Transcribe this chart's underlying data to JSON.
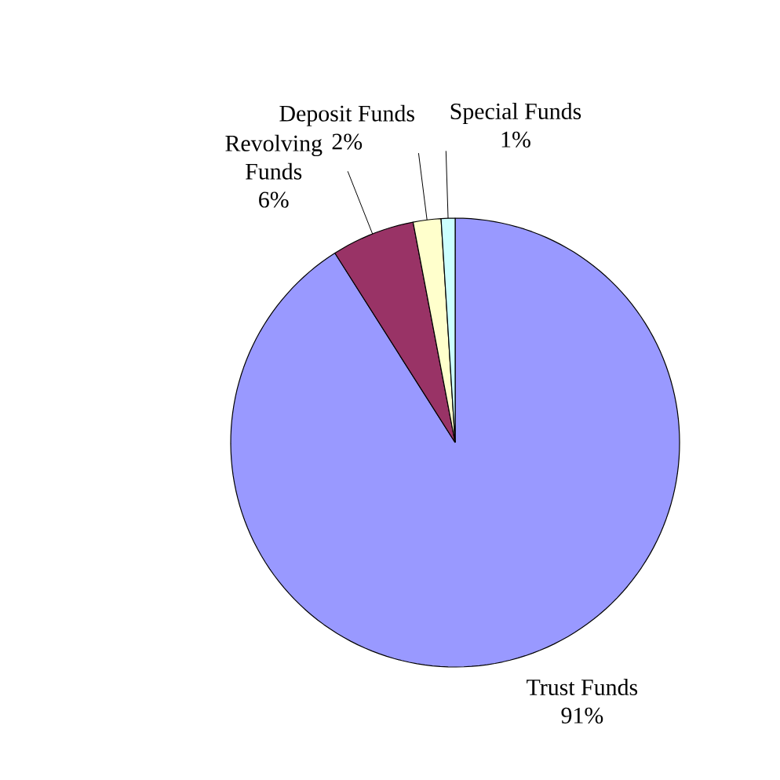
{
  "chart_data": {
    "type": "pie",
    "categories": [
      "Trust Funds",
      "Revolving Funds",
      "Deposit Funds",
      "Special Funds"
    ],
    "values": [
      91,
      6,
      2,
      1
    ],
    "colors": [
      "#9999ff",
      "#993366",
      "#ffffcc",
      "#ccffff"
    ],
    "value_labels": [
      "91%",
      "6%",
      "2%",
      "1%"
    ]
  }
}
